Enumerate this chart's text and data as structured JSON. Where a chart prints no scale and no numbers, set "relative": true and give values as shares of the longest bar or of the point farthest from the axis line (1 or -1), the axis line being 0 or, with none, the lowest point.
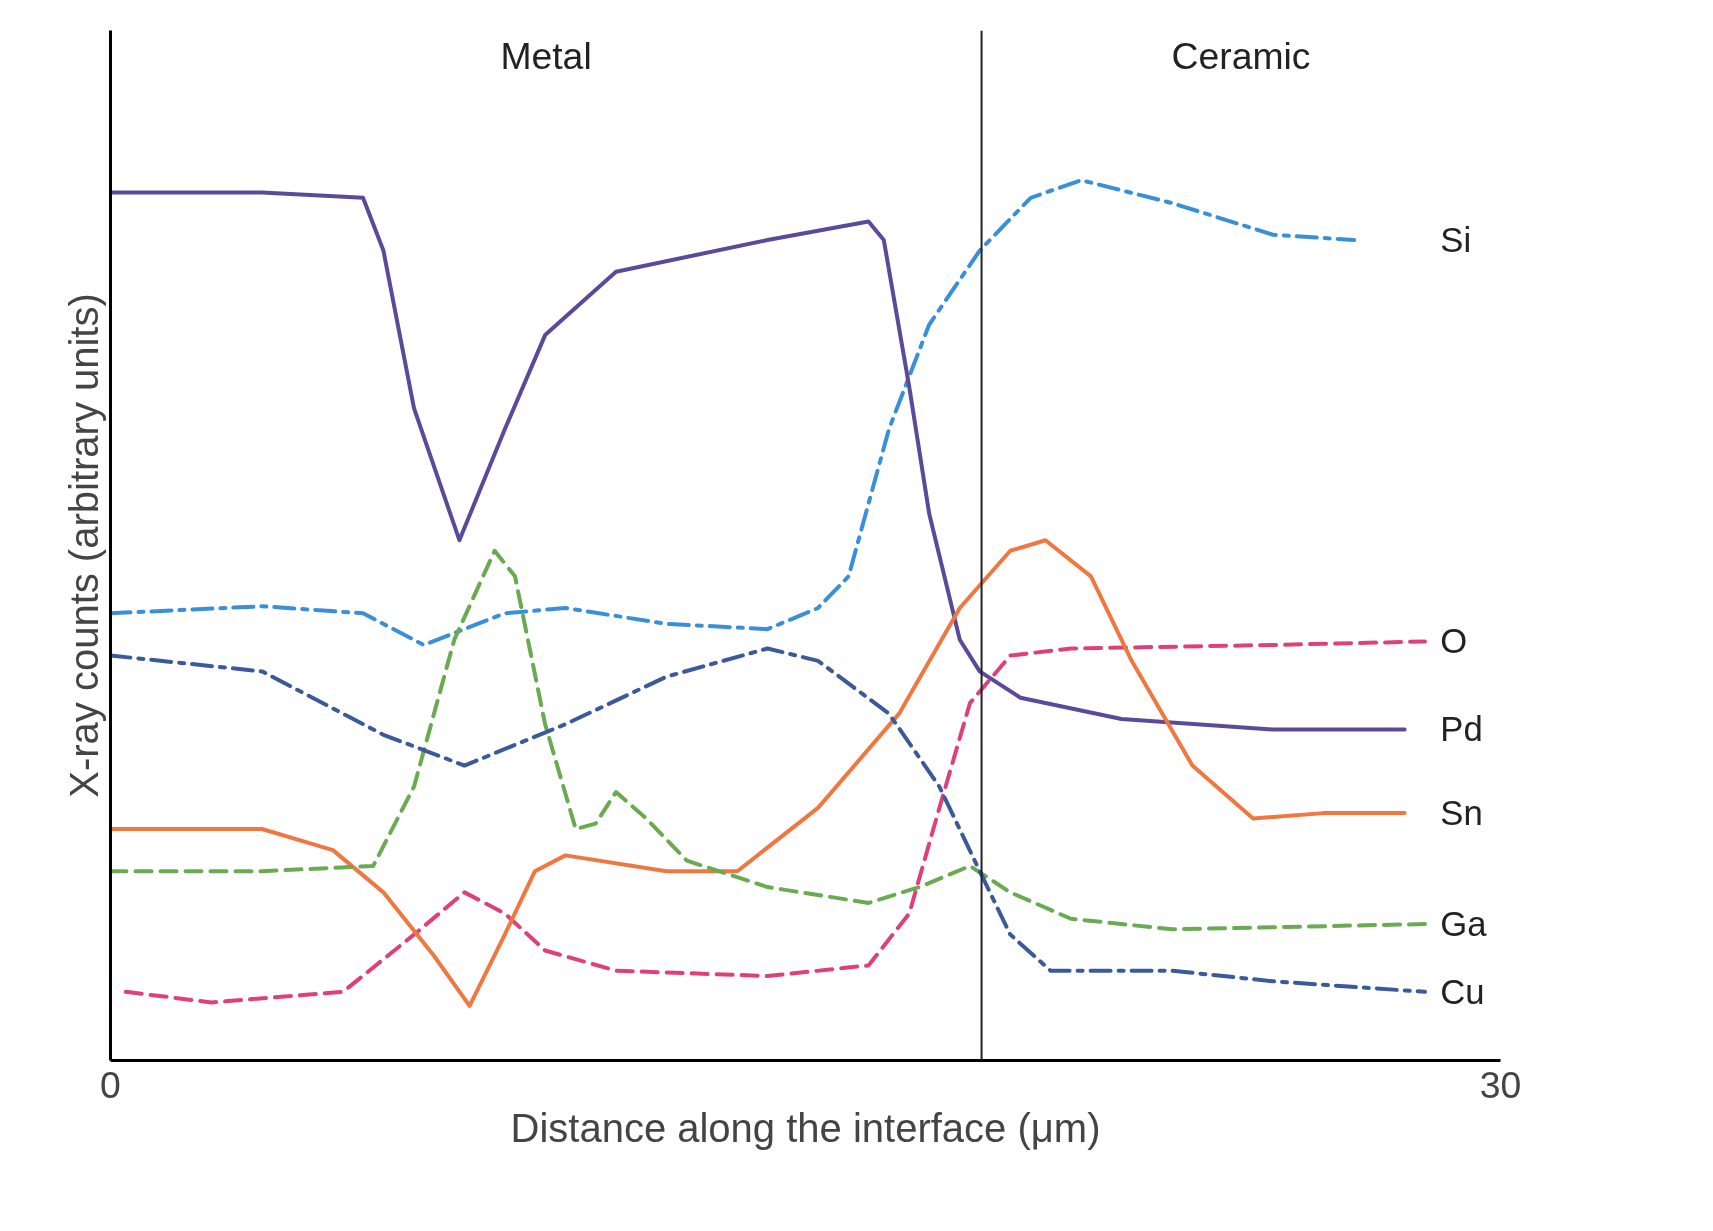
{
  "chart_data": {
    "type": "line",
    "relative": true,
    "xlabel": "Distance along the interface (μm)",
    "ylabel": "X-ray counts (arbitrary units)",
    "xlim": [
      0,
      30
    ],
    "xticks": [
      0,
      30
    ],
    "marker": "none",
    "ref_lines": [
      {
        "axis": "x",
        "value": 18.8,
        "color": "#222222"
      }
    ],
    "annotations": [
      "Metal",
      "Ceramic"
    ],
    "series": [
      {
        "name": "Si",
        "color": "#3a8fd9",
        "line_style": "dashdot",
        "x": [
          0,
          3.27,
          5.45,
          6.76,
          8.51,
          9.82,
          12.0,
          14.18,
          15.27,
          15.93,
          16.8,
          17.67,
          18.76,
          19.86,
          20.95,
          22.91,
          25.09,
          26.84
        ],
        "values": [
          0.508,
          0.516,
          0.508,
          0.472,
          0.508,
          0.514,
          0.496,
          0.49,
          0.514,
          0.55,
          0.717,
          0.836,
          0.92,
          0.98,
          1.0,
          0.974,
          0.938,
          0.932
        ]
      },
      {
        "name": "O",
        "color": "#e0407a",
        "line_style": "dashed",
        "x": [
          0.33,
          2.18,
          5.02,
          6.55,
          7.64,
          8.51,
          9.38,
          10.91,
          14.18,
          16.36,
          17.24,
          17.89,
          18.55,
          19.42,
          20.73,
          25.09,
          28.37
        ],
        "values": [
          0.078,
          0.066,
          0.078,
          0.143,
          0.191,
          0.167,
          0.125,
          0.102,
          0.096,
          0.108,
          0.167,
          0.287,
          0.406,
          0.46,
          0.468,
          0.472,
          0.476
        ]
      },
      {
        "name": "Pd",
        "color": "#5b4a9a",
        "line_style": "solid",
        "x": [
          0,
          3.27,
          5.45,
          5.89,
          6.55,
          7.53,
          8.51,
          9.38,
          10.91,
          14.18,
          16.36,
          16.69,
          17.24,
          17.67,
          18.33,
          18.76,
          19.64,
          21.82,
          25.09,
          27.93
        ],
        "values": [
          0.986,
          0.986,
          0.98,
          0.92,
          0.741,
          0.591,
          0.717,
          0.824,
          0.896,
          0.932,
          0.953,
          0.932,
          0.765,
          0.621,
          0.478,
          0.442,
          0.412,
          0.388,
          0.376,
          0.376
        ]
      },
      {
        "name": "Sn",
        "color": "#f07840",
        "line_style": "solid",
        "x": [
          0,
          3.27,
          4.8,
          5.89,
          6.98,
          7.75,
          8.51,
          9.16,
          9.82,
          12.0,
          13.53,
          15.27,
          17.02,
          18.33,
          19.42,
          20.18,
          21.16,
          22.04,
          23.35,
          24.66,
          26.18,
          27.93
        ],
        "values": [
          0.263,
          0.263,
          0.239,
          0.191,
          0.119,
          0.062,
          0.143,
          0.215,
          0.233,
          0.215,
          0.215,
          0.287,
          0.394,
          0.514,
          0.579,
          0.591,
          0.55,
          0.454,
          0.335,
          0.275,
          0.281,
          0.281
        ]
      },
      {
        "name": "Ga",
        "color": "#6aaa50",
        "line_style": "dashed",
        "x": [
          0,
          3.27,
          5.67,
          6.55,
          7.42,
          8.29,
          8.73,
          9.38,
          10.04,
          10.47,
          10.91,
          11.56,
          12.44,
          14.18,
          16.36,
          17.46,
          18.55,
          19.42,
          20.73,
          22.91,
          28.37
        ],
        "values": [
          0.215,
          0.215,
          0.221,
          0.311,
          0.478,
          0.579,
          0.55,
          0.382,
          0.263,
          0.269,
          0.305,
          0.275,
          0.227,
          0.197,
          0.179,
          0.197,
          0.221,
          0.191,
          0.161,
          0.149,
          0.155
        ]
      },
      {
        "name": "Cu",
        "color": "#3a5a9a",
        "line_style": "dashdot",
        "x": [
          0,
          3.27,
          5.89,
          7.64,
          9.82,
          12.0,
          14.18,
          15.27,
          16.8,
          17.89,
          18.76,
          19.42,
          20.29,
          22.91,
          25.09,
          28.37
        ],
        "values": [
          0.46,
          0.442,
          0.37,
          0.335,
          0.382,
          0.436,
          0.468,
          0.454,
          0.394,
          0.311,
          0.215,
          0.143,
          0.102,
          0.102,
          0.09,
          0.078
        ]
      }
    ]
  }
}
